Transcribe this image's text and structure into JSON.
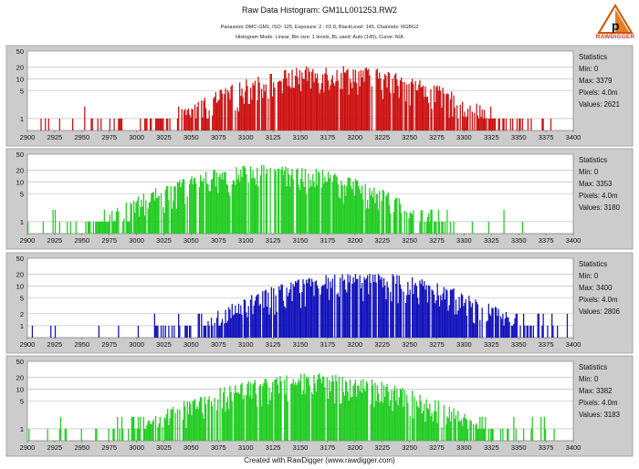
{
  "header": {
    "title": "Raw Data Histogram: GM1LL001253.RW2",
    "subtitle1": "Panasonic DMC-GM1, ISO: 125, Exposure: 2 - f/2.8, BlackLevel: 145, Channels: RGBG2",
    "subtitle2": "Histogram Mode: Linear, Bin size: 1 levels, BL used: Auto (145), Curve: N/A"
  },
  "logo": {
    "text": "RAWDIGGER",
    "icon": "rawdigger-logo-icon",
    "color": "#c0392b"
  },
  "footer": {
    "text": "Created with RawDigger (www.rawdigger.com)"
  },
  "colors": {
    "panel_bg": "#cccccc",
    "plot_bg": "#ffffff",
    "grid": "#b5b5b5"
  },
  "chart_data": [
    {
      "type": "bar",
      "channel": "R",
      "color": "#cc1111",
      "yscale": "log",
      "xlim": [
        2900,
        3400
      ],
      "ylim": [
        0.5,
        50
      ],
      "x_ticks": [
        2900,
        2925,
        2950,
        2975,
        3000,
        3025,
        3050,
        3075,
        3100,
        3125,
        3150,
        3175,
        3200,
        3225,
        3250,
        3275,
        3300,
        3325,
        3350,
        3375,
        3400
      ],
      "y_ticks": [
        1,
        5,
        10,
        20,
        50
      ],
      "distribution": {
        "center": 3180,
        "sigma": 62,
        "peak": 16,
        "min": 2900,
        "max": 3379
      },
      "stats": {
        "title": "Statistics",
        "min": "Min: 0",
        "max": "Max: 3379",
        "pixels": "Pixels: 4.0m",
        "values": "Values: 2621"
      }
    },
    {
      "type": "bar",
      "channel": "G",
      "color": "#22cc22",
      "yscale": "log",
      "xlim": [
        2900,
        3400
      ],
      "ylim": [
        0.5,
        50
      ],
      "x_ticks": [
        2900,
        2925,
        2950,
        2975,
        3000,
        3025,
        3050,
        3075,
        3100,
        3125,
        3150,
        3175,
        3200,
        3225,
        3250,
        3275,
        3300,
        3325,
        3350,
        3375,
        3400
      ],
      "y_ticks": [
        1,
        5,
        10,
        20,
        50
      ],
      "distribution": {
        "center": 3120,
        "sigma": 62,
        "peak": 20,
        "min": 2900,
        "max": 3353
      },
      "stats": {
        "title": "Statistics",
        "min": "Min: 0",
        "max": "Max: 3353",
        "pixels": "Pixels: 4.0m",
        "values": "Values: 3180"
      }
    },
    {
      "type": "bar",
      "channel": "B",
      "color": "#1111bb",
      "yscale": "log",
      "xlim": [
        2900,
        3400
      ],
      "ylim": [
        0.5,
        50
      ],
      "x_ticks": [
        2900,
        2925,
        2950,
        2975,
        3000,
        3025,
        3050,
        3075,
        3100,
        3125,
        3150,
        3175,
        3200,
        3225,
        3250,
        3275,
        3300,
        3325,
        3350,
        3375,
        3400
      ],
      "y_ticks": [
        1,
        2,
        5,
        10,
        20,
        50
      ],
      "distribution": {
        "center": 3205,
        "sigma": 62,
        "peak": 16,
        "min": 2900,
        "max": 3400
      },
      "stats": {
        "title": "Statistics",
        "min": "Min: 0",
        "max": "Max: 3400",
        "pixels": "Pixels: 4.0m",
        "values": "Values: 2806"
      }
    },
    {
      "type": "bar",
      "channel": "G2",
      "color": "#22cc22",
      "yscale": "log",
      "xlim": [
        2900,
        3400
      ],
      "ylim": [
        0.5,
        50
      ],
      "x_ticks": [
        2900,
        2925,
        2950,
        2975,
        3000,
        3025,
        3050,
        3075,
        3100,
        3125,
        3150,
        3175,
        3200,
        3225,
        3250,
        3275,
        3300,
        3325,
        3350,
        3375,
        3400
      ],
      "y_ticks": [
        1,
        5,
        10,
        20,
        50
      ],
      "distribution": {
        "center": 3160,
        "sigma": 65,
        "peak": 18,
        "min": 2900,
        "max": 3382
      },
      "stats": {
        "title": "Statistics",
        "min": "Min: 0",
        "max": "Max: 3382",
        "pixels": "Pixels: 4.0m",
        "values": "Values: 3183"
      }
    }
  ]
}
